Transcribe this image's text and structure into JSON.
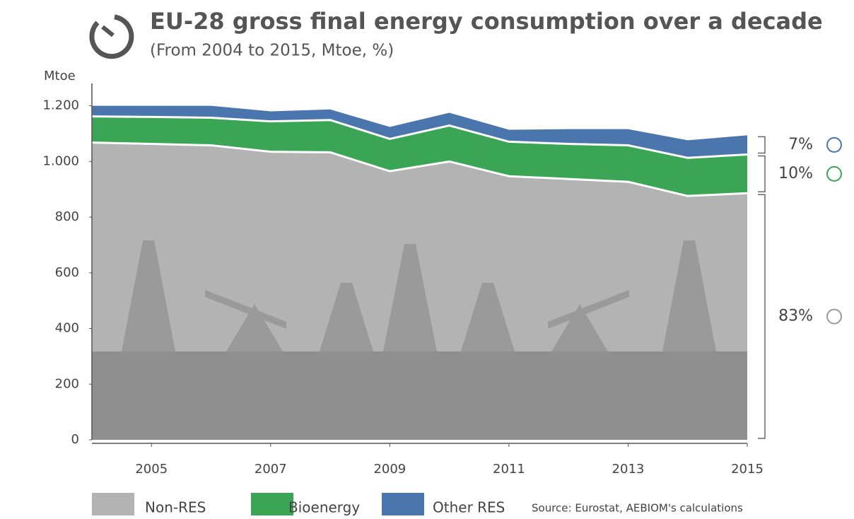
{
  "chart_data": {
    "type": "stacked-area",
    "title": "EU-28 gross final energy consumption over a decade",
    "subtitle": "(From 2004 to 2015, Mtoe, %)",
    "ylabel": "Mtoe",
    "source": "Source: Eurostat, AEBIOM's calculations",
    "x": [
      2004,
      2005,
      2006,
      2007,
      2008,
      2009,
      2010,
      2011,
      2012,
      2013,
      2014,
      2015
    ],
    "xlim": [
      2004,
      2015
    ],
    "xticks": [
      2005,
      2007,
      2009,
      2011,
      2013,
      2015
    ],
    "ylim": [
      0,
      1260
    ],
    "yticks": [
      0,
      200,
      400,
      600,
      800,
      {
        "value": 1000,
        "label": "1.000"
      },
      {
        "value": 1200,
        "label": "1.200"
      }
    ],
    "series": [
      {
        "name": "Non-RES",
        "color": "#b3b3b3",
        "share_label": "83%",
        "values": [
          1068,
          1063,
          1058,
          1035,
          1033,
          965,
          1000,
          947,
          937,
          927,
          876,
          886
        ]
      },
      {
        "name": "Bioenergy",
        "color": "#3aa655",
        "share_label": "10%",
        "values": [
          94,
          97,
          99,
          109,
          116,
          116,
          129,
          124,
          126,
          131,
          137,
          139
        ]
      },
      {
        "name": "Other RES",
        "color": "#4a76ad",
        "share_label": "7%",
        "values": [
          38,
          40,
          43,
          36,
          38,
          43,
          46,
          43,
          53,
          58,
          63,
          69
        ]
      }
    ]
  }
}
